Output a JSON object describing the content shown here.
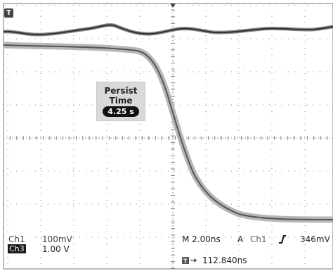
{
  "trigger_marker": {
    "label": "T",
    "icon": "trigger-level-marker-icon"
  },
  "persist": {
    "title": "Persist",
    "subtitle": "Time",
    "value": "4.25 s"
  },
  "channels": [
    {
      "name": "Ch1",
      "scale": "100mV"
    },
    {
      "name": "Ch3",
      "scale": "1.00 V"
    }
  ],
  "timebase": {
    "label": "M 2.00ns",
    "mode": "A",
    "trigger_source": "Ch1",
    "slope_icon": "rising-edge-icon",
    "trigger_level": "346mV"
  },
  "position": {
    "icon": "trigger-position-icon",
    "value": "112.840ns"
  },
  "colors": {
    "trace_dark": "#3a3a3a",
    "trace_glow": "#9a9a9a",
    "grid": "#7a7a7a",
    "background": "#ffffff"
  }
}
